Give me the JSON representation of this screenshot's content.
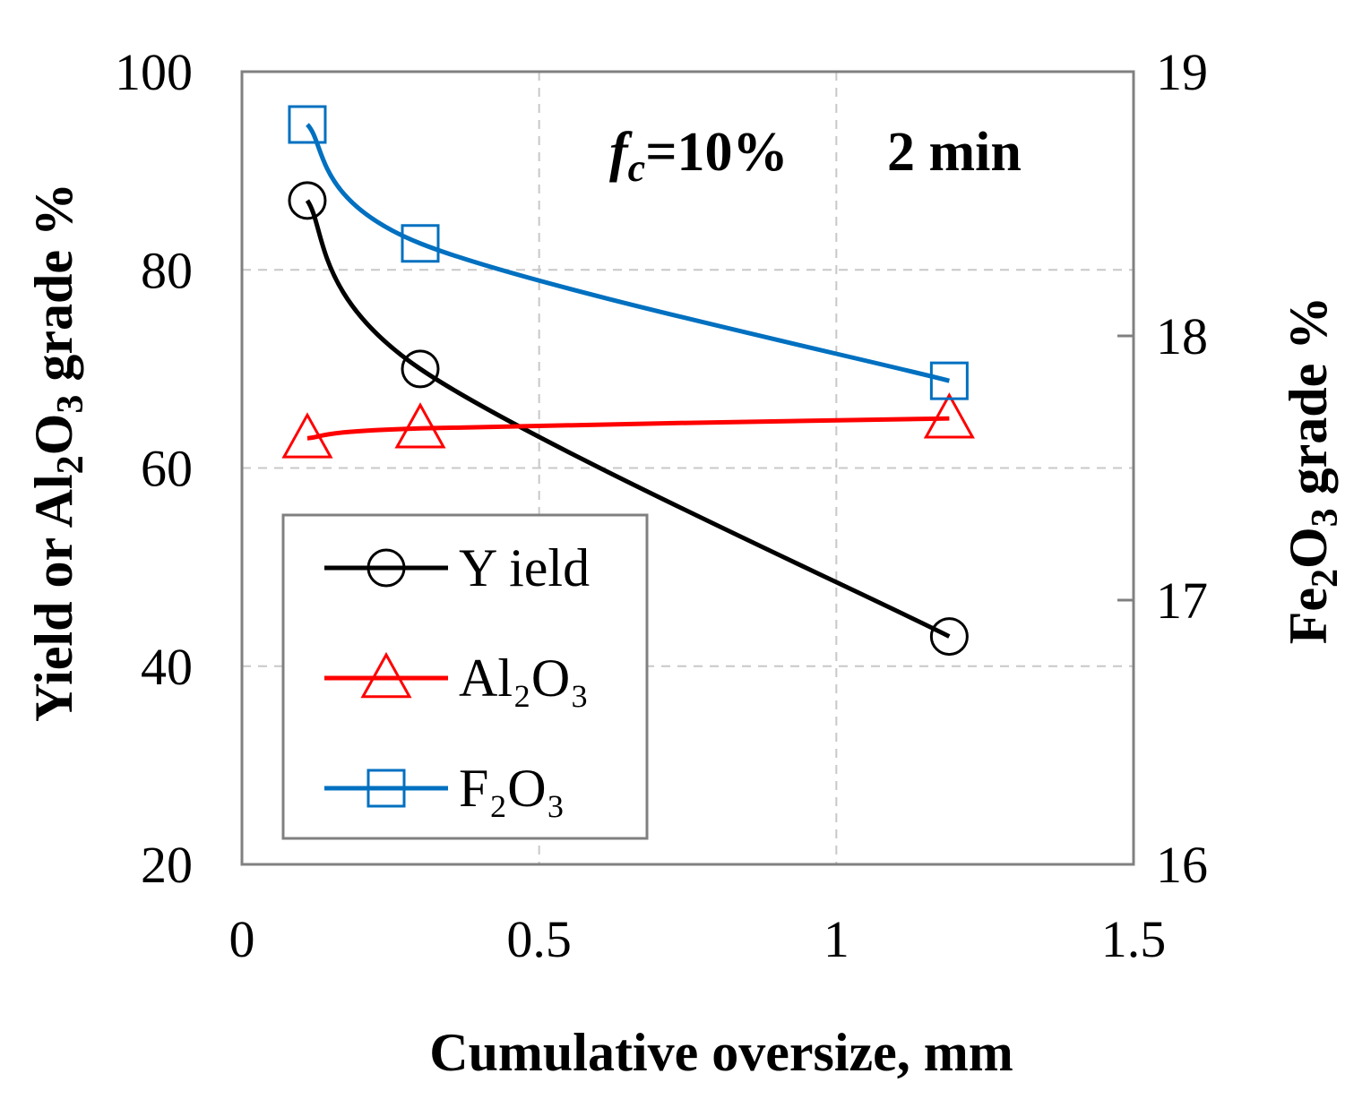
{
  "chart_data": {
    "type": "line",
    "title": "",
    "annotations": {
      "condition_symbol": "f",
      "condition_subscript": "c",
      "condition_value": "=10%",
      "time": "2 min"
    },
    "xlabel": "Cumulative oversize, mm",
    "ylabel_left": {
      "prefix": "Yield or Al",
      "sub1": "2",
      "mid": "O",
      "sub2": "3",
      "suffix": " grade %"
    },
    "ylabel_right": {
      "prefix": "Fe",
      "sub1": "2",
      "mid": "O",
      "sub2": "3",
      "suffix": " grade %"
    },
    "xlim": [
      0,
      1.5
    ],
    "ylim_left": [
      20,
      100
    ],
    "ylim_right": [
      16,
      19
    ],
    "x_ticks": [
      "0",
      "0.5",
      "1",
      "1.5"
    ],
    "y_left_ticks": [
      "20",
      "40",
      "60",
      "80",
      "100"
    ],
    "y_right_ticks": [
      "16",
      "17",
      "18",
      "19"
    ],
    "grid": true,
    "legend_position": "bottom-left",
    "series": [
      {
        "name": "Yield",
        "legend_label": "Y ield",
        "axis": "left",
        "marker": "circle",
        "color": "#000000",
        "x": [
          0.11,
          0.3,
          1.19
        ],
        "y": [
          87,
          70,
          43
        ]
      },
      {
        "name": "Al2O3",
        "legend_label": "Al₂O₃",
        "axis": "left",
        "marker": "triangle",
        "color": "#ff0000",
        "x": [
          0.11,
          0.3,
          1.19
        ],
        "y": [
          63,
          64,
          65
        ]
      },
      {
        "name": "F2O3",
        "legend_label": "F₂O₃",
        "axis": "right",
        "marker": "square",
        "color": "#0070c0",
        "x": [
          0.11,
          0.3,
          1.19
        ],
        "y": [
          18.8,
          18.35,
          17.83
        ]
      }
    ]
  }
}
